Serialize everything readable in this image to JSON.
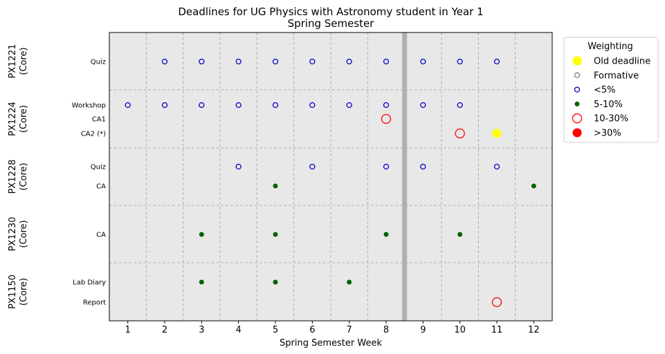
{
  "chart_data": {
    "type": "scatter",
    "title": "Deadlines for UG Physics with Astronomy student in Year 1",
    "subtitle": "Spring Semester",
    "xlabel": "Spring Semester Week",
    "x_ticks": [
      1,
      2,
      3,
      4,
      5,
      6,
      7,
      8,
      9,
      10,
      11,
      12
    ],
    "xlim": [
      0.5,
      12.5
    ],
    "grid": true,
    "break_marker_week": 8.5,
    "groups": [
      {
        "label": "PX1221\n(Core)",
        "rows": [
          {
            "label": "Quiz",
            "points": [
              {
                "week": 2,
                "weight": "<5%"
              },
              {
                "week": 3,
                "weight": "<5%"
              },
              {
                "week": 4,
                "weight": "<5%"
              },
              {
                "week": 5,
                "weight": "<5%"
              },
              {
                "week": 6,
                "weight": "<5%"
              },
              {
                "week": 7,
                "weight": "<5%"
              },
              {
                "week": 8,
                "weight": "<5%"
              },
              {
                "week": 9,
                "weight": "<5%"
              },
              {
                "week": 10,
                "weight": "<5%"
              },
              {
                "week": 11,
                "weight": "<5%"
              }
            ]
          }
        ]
      },
      {
        "label": "PX1224\n(Core)",
        "rows": [
          {
            "label": "Workshop",
            "points": [
              {
                "week": 1,
                "weight": "<5%"
              },
              {
                "week": 2,
                "weight": "<5%"
              },
              {
                "week": 3,
                "weight": "<5%"
              },
              {
                "week": 4,
                "weight": "<5%"
              },
              {
                "week": 5,
                "weight": "<5%"
              },
              {
                "week": 6,
                "weight": "<5%"
              },
              {
                "week": 7,
                "weight": "<5%"
              },
              {
                "week": 8,
                "weight": "<5%"
              },
              {
                "week": 9,
                "weight": "<5%"
              },
              {
                "week": 10,
                "weight": "<5%"
              }
            ]
          },
          {
            "label": "CA1",
            "points": [
              {
                "week": 8,
                "weight": "10-30%"
              }
            ]
          },
          {
            "label": "CA2 (*)",
            "points": [
              {
                "week": 10,
                "weight": "10-30%"
              },
              {
                "week": 11,
                "weight": "Old deadline"
              }
            ]
          }
        ]
      },
      {
        "label": "PX1228\n(Core)",
        "rows": [
          {
            "label": "Quiz",
            "points": [
              {
                "week": 4,
                "weight": "<5%"
              },
              {
                "week": 6,
                "weight": "<5%"
              },
              {
                "week": 8,
                "weight": "<5%"
              },
              {
                "week": 9,
                "weight": "<5%"
              },
              {
                "week": 11,
                "weight": "<5%"
              }
            ]
          },
          {
            "label": "CA",
            "points": [
              {
                "week": 5,
                "weight": "5-10%"
              },
              {
                "week": 12,
                "weight": "5-10%"
              }
            ]
          }
        ]
      },
      {
        "label": "PX1230\n(Core)",
        "rows": [
          {
            "label": "CA",
            "points": [
              {
                "week": 3,
                "weight": "5-10%"
              },
              {
                "week": 5,
                "weight": "5-10%"
              },
              {
                "week": 8,
                "weight": "5-10%"
              },
              {
                "week": 10,
                "weight": "5-10%"
              }
            ]
          }
        ]
      },
      {
        "label": "PX1150\n(Core)",
        "rows": [
          {
            "label": "Lab Diary",
            "points": [
              {
                "week": 3,
                "weight": "5-10%"
              },
              {
                "week": 5,
                "weight": "5-10%"
              },
              {
                "week": 7,
                "weight": "5-10%"
              }
            ]
          },
          {
            "label": "Report",
            "points": [
              {
                "week": 11,
                "weight": "10-30%"
              }
            ]
          }
        ]
      }
    ],
    "legend": {
      "title": "Weighting",
      "placement": "outside-right",
      "entries": [
        {
          "label": "Old deadline",
          "style": "filled",
          "color": "#ffff00",
          "size": "large"
        },
        {
          "label": "Formative",
          "style": "hollow",
          "color": "#808080",
          "size": "small"
        },
        {
          "label": "<5%",
          "style": "hollow",
          "color": "#0000cc",
          "size": "small"
        },
        {
          "label": "5-10%",
          "style": "filled",
          "color": "#006400",
          "size": "small"
        },
        {
          "label": "10-30%",
          "style": "hollow",
          "color": "#ff0000",
          "size": "large"
        },
        {
          "label": ">30%",
          "style": "filled",
          "color": "#ff0000",
          "size": "large"
        }
      ]
    },
    "colors": {
      "plot_background": "#e8e8e8",
      "grid": "#a0a0a0",
      "break_marker": "#b0b0b0"
    }
  }
}
